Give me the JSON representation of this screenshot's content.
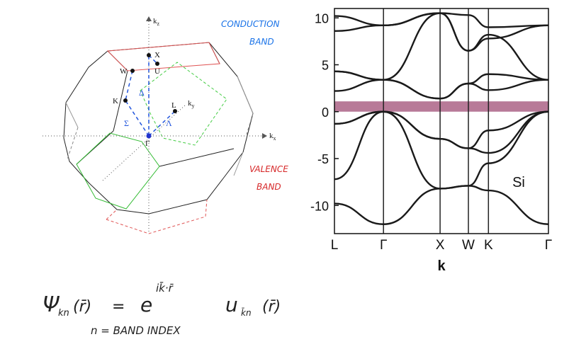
{
  "bz": {
    "axis_kz": "k",
    "axis_kz_sub": "z",
    "axis_ky": "k",
    "axis_ky_sub": "y",
    "axis_kx": "k",
    "axis_kx_sub": "x",
    "point_X": "X",
    "point_U": "U",
    "point_W": "W",
    "point_K": "K",
    "point_L": "L",
    "point_Gamma": "Γ",
    "line_Delta": "Δ",
    "line_Lambda": "Λ",
    "line_Sigma": "Σ"
  },
  "annotations": {
    "conduction_line1": "CONDUCTION",
    "conduction_line2": "BAND",
    "valence_line1": "VALENCE",
    "valence_line2": "BAND",
    "conduction_color": "#1a73e8",
    "valence_color": "#d62728"
  },
  "equation": {
    "psi": "Ψ",
    "psi_sub": "kn",
    "arg": "(r̄)",
    "equals": "=",
    "exp_base": "e",
    "exp_power": "ik̄·r̄",
    "u": "u",
    "u_sub": "k̄n",
    "u_arg": "(r̄)",
    "index_note": "n = BAND INDEX"
  },
  "chart_data": {
    "type": "line",
    "title": "",
    "material_label": "Si",
    "xlabel": "k",
    "ylabel": "",
    "k_labels": [
      "L",
      "Γ",
      "X",
      "W",
      "K",
      "Γ"
    ],
    "k_positions": [
      0,
      0.866,
      1.866,
      2.366,
      2.72,
      3.78
    ],
    "ylim": [
      -13,
      11
    ],
    "yticks": [
      -10,
      -5,
      0,
      5,
      10
    ],
    "band_gap_region": [
      0,
      1.1
    ],
    "band_gap_color": "#b87a98",
    "series": [
      {
        "values_at": [
          0,
          0.866,
          1.866,
          2.366,
          2.72,
          3.78
        ],
        "y": [
          -9.8,
          -12.0,
          -8.2,
          -7.9,
          -8.4,
          -12.0
        ]
      },
      {
        "values_at": [
          0,
          0.866,
          1.866,
          2.366,
          2.72,
          3.78
        ],
        "y": [
          -7.2,
          0.0,
          -8.2,
          -7.9,
          -5.5,
          0.0
        ]
      },
      {
        "values_at": [
          0,
          0.866,
          1.866,
          2.366,
          2.72,
          3.78
        ],
        "y": [
          -1.3,
          0.0,
          -2.9,
          -3.9,
          -4.4,
          0.0
        ]
      },
      {
        "values_at": [
          0,
          0.866,
          1.866,
          2.366,
          2.72,
          3.78
        ],
        "y": [
          -1.3,
          0.0,
          -2.9,
          -3.9,
          -2.0,
          0.0
        ]
      },
      {
        "values_at": [
          0,
          0.866,
          1.866,
          2.366,
          2.72,
          3.78
        ],
        "y": [
          2.2,
          3.4,
          1.4,
          3.0,
          2.3,
          3.4
        ]
      },
      {
        "values_at": [
          0,
          0.866,
          1.866,
          2.366,
          2.72,
          3.78
        ],
        "y": [
          4.3,
          3.4,
          1.4,
          3.0,
          4.0,
          3.4
        ]
      },
      {
        "values_at": [
          0,
          0.866,
          1.866,
          2.366,
          2.72,
          3.78
        ],
        "y": [
          4.3,
          3.4,
          10.5,
          6.5,
          8.2,
          3.4
        ]
      },
      {
        "values_at": [
          0,
          0.866,
          1.866,
          2.366,
          2.72,
          3.78
        ],
        "y": [
          8.6,
          9.2,
          10.5,
          6.5,
          7.8,
          9.2
        ]
      },
      {
        "values_at": [
          0,
          0.866,
          1.866,
          2.366,
          2.72,
          3.78
        ],
        "y": [
          10.2,
          9.2,
          10.5,
          10.3,
          9.0,
          9.2
        ]
      }
    ]
  }
}
